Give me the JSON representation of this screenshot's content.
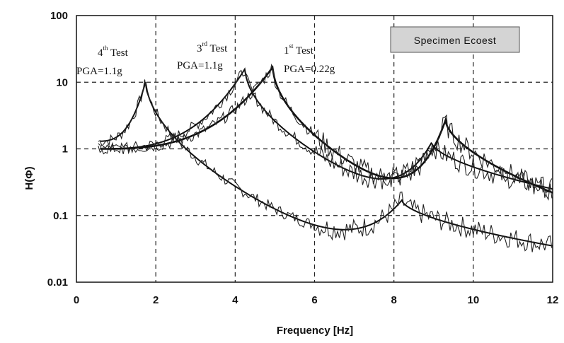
{
  "chart_data": {
    "type": "line",
    "xlabel": "Frequency [Hz]",
    "ylabel": "H(Φ)",
    "xlim": [
      0,
      12
    ],
    "ylim": [
      0.01,
      100
    ],
    "yscale": "log",
    "grid": "dashed",
    "x_ticks": [
      "0",
      "2",
      "4",
      "6",
      "8",
      "10",
      "12"
    ],
    "y_ticks": [
      "100",
      "10",
      "1",
      "0.1",
      "0.01"
    ],
    "legend_box": "Specimen Ecoest",
    "annotations": [
      {
        "base": "4",
        "sup": "th",
        "rest": " Test",
        "pga": "PGA=1.1g"
      },
      {
        "base": "3",
        "sup": "rd",
        "rest": " Test",
        "pga": "PGA=1.1g"
      },
      {
        "base": "1",
        "sup": "st",
        "rest": " Test",
        "pga": "PGA=0.22g"
      }
    ],
    "series": [
      {
        "peak1_x": 1.75,
        "peak1_y": 10.5,
        "peak2_x": 8.2,
        "peak2_y": 0.17,
        "y_start": 1.3,
        "y_end": 0.035
      },
      {
        "peak1_x": 4.25,
        "peak1_y": 16,
        "peak2_x": 8.95,
        "peak2_y": 1.25,
        "y_start": 1.0,
        "y_end": 0.25
      },
      {
        "peak1_x": 4.95,
        "peak1_y": 17,
        "peak2_x": 9.3,
        "peak2_y": 2.7,
        "y_start": 1.0,
        "y_end": 0.22
      }
    ]
  }
}
